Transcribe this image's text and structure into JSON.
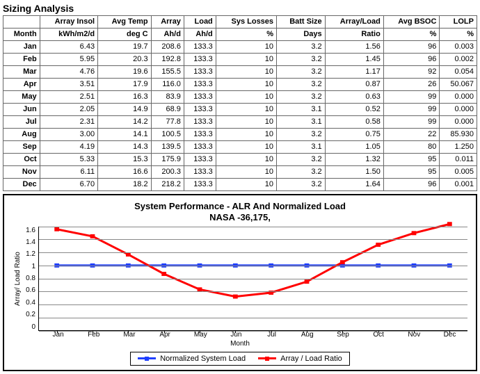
{
  "title": "Sizing Analysis",
  "table": {
    "header1": [
      "",
      "Array Insol",
      "Avg Temp",
      "Array",
      "Load",
      "Sys Losses",
      "Batt Size",
      "Array/Load",
      "Avg BSOC",
      "LOLP"
    ],
    "header2": [
      "Month",
      "kWh/m2/d",
      "deg C",
      "Ah/d",
      "Ah/d",
      "%",
      "Days",
      "Ratio",
      "%",
      "%"
    ],
    "rows": [
      [
        "Jan",
        "6.43",
        "19.7",
        "208.6",
        "133.3",
        "10",
        "3.2",
        "1.56",
        "96",
        "0.003"
      ],
      [
        "Feb",
        "5.95",
        "20.3",
        "192.8",
        "133.3",
        "10",
        "3.2",
        "1.45",
        "96",
        "0.002"
      ],
      [
        "Mar",
        "4.76",
        "19.6",
        "155.5",
        "133.3",
        "10",
        "3.2",
        "1.17",
        "92",
        "0.054"
      ],
      [
        "Apr",
        "3.51",
        "17.9",
        "116.0",
        "133.3",
        "10",
        "3.2",
        "0.87",
        "26",
        "50.067"
      ],
      [
        "May",
        "2.51",
        "16.3",
        "83.9",
        "133.3",
        "10",
        "3.2",
        "0.63",
        "99",
        "0.000"
      ],
      [
        "Jun",
        "2.05",
        "14.9",
        "68.9",
        "133.3",
        "10",
        "3.1",
        "0.52",
        "99",
        "0.000"
      ],
      [
        "Jul",
        "2.31",
        "14.2",
        "77.8",
        "133.3",
        "10",
        "3.1",
        "0.58",
        "99",
        "0.000"
      ],
      [
        "Aug",
        "3.00",
        "14.1",
        "100.5",
        "133.3",
        "10",
        "3.2",
        "0.75",
        "22",
        "85.930"
      ],
      [
        "Sep",
        "4.19",
        "14.3",
        "139.5",
        "133.3",
        "10",
        "3.1",
        "1.05",
        "80",
        "1.250"
      ],
      [
        "Oct",
        "5.33",
        "15.3",
        "175.9",
        "133.3",
        "10",
        "3.2",
        "1.32",
        "95",
        "0.011"
      ],
      [
        "Nov",
        "6.11",
        "16.6",
        "200.3",
        "133.3",
        "10",
        "3.2",
        "1.50",
        "95",
        "0.005"
      ],
      [
        "Dec",
        "6.70",
        "18.2",
        "218.2",
        "133.3",
        "10",
        "3.2",
        "1.64",
        "96",
        "0.001"
      ]
    ]
  },
  "chart": {
    "title_line1": "System Performance - ALR And Normalized Load",
    "title_line2": "NASA -36,175,",
    "ylabel": "Array/ Load Ratio",
    "xlabel": "Month",
    "ymin": 0,
    "ymax": 1.6,
    "ystep": 0.2,
    "yticks": [
      "0",
      "0.2",
      "0.4",
      "0.6",
      "0.8",
      "1",
      "1.2",
      "1.4",
      "1.6"
    ],
    "categories": [
      "Jan",
      "Feb",
      "Mar",
      "Apr",
      "May",
      "Jun",
      "Jul",
      "Aug",
      "Sep",
      "Oct",
      "Nov",
      "Dec"
    ],
    "series": [
      {
        "name": "Normalized System Load",
        "color": "#1f3fff",
        "line_width": 3,
        "marker": "square",
        "marker_size": 6,
        "values": [
          1.0,
          1.0,
          1.0,
          1.0,
          1.0,
          1.0,
          1.0,
          1.0,
          1.0,
          1.0,
          1.0,
          1.0
        ]
      },
      {
        "name": "Array / Load Ratio",
        "color": "#ff0000",
        "line_width": 3,
        "marker": "square",
        "marker_size": 6,
        "values": [
          1.56,
          1.45,
          1.17,
          0.87,
          0.63,
          0.52,
          0.58,
          0.75,
          1.05,
          1.32,
          1.5,
          1.64
        ]
      }
    ],
    "grid_color": "#888888",
    "background_color": "#ffffff"
  },
  "legend": {
    "items": [
      {
        "label": "Normalized System Load",
        "color": "#1f3fff"
      },
      {
        "label": "Array / Load Ratio",
        "color": "#ff0000"
      }
    ]
  }
}
